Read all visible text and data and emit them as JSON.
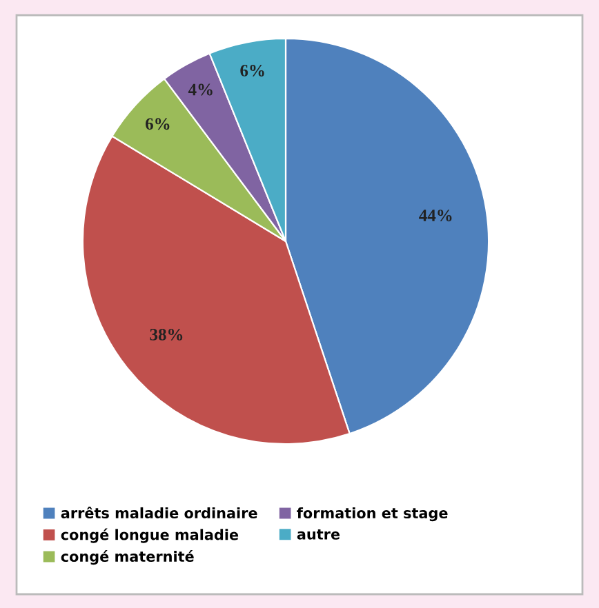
{
  "chart_data": {
    "type": "pie",
    "categories": [
      "arrêts maladie ordinaire",
      "congé longue maladie",
      "congé maternité",
      "formation et stage",
      "autre"
    ],
    "values": [
      44,
      38,
      6,
      4,
      6
    ],
    "colors": [
      "#4f81bd",
      "#c0504d",
      "#9bbb59",
      "#8064a2",
      "#4bacc6"
    ],
    "value_labels": [
      "44%",
      "38%",
      "6%",
      "4%",
      "6%"
    ],
    "legend": "bottom"
  }
}
